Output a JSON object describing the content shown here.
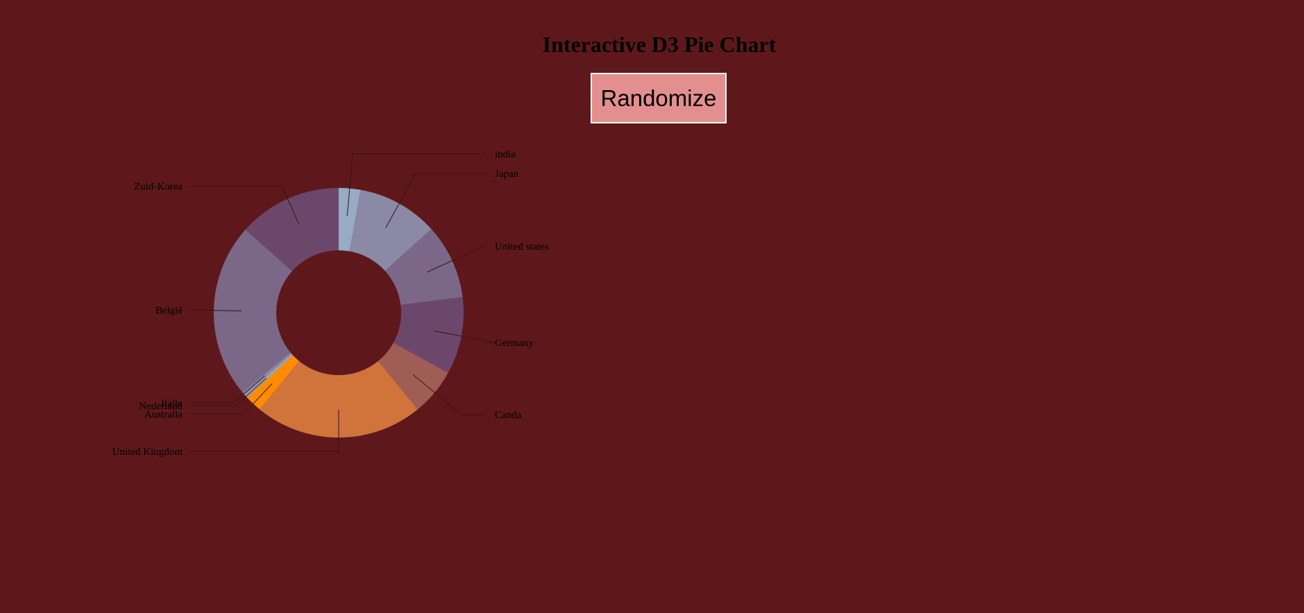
{
  "page": {
    "title": "Interactive D3 Pie Chart",
    "button_label": "Randomize"
  },
  "colors": {
    "background": "#5e181b",
    "button_bg": "#e38f8f",
    "button_border": "#ffffff",
    "leader_line": "#3a1316"
  },
  "chart_data": {
    "type": "pie",
    "variant": "donut",
    "title": "",
    "start_angle_deg": 0,
    "direction": "clockwise",
    "slices": [
      {
        "label": "india",
        "value": 2.8,
        "color": "#98abc5",
        "label_side": "right"
      },
      {
        "label": "Japan",
        "value": 10.5,
        "color": "#8a89a6",
        "label_side": "right"
      },
      {
        "label": "United states",
        "value": 9.7,
        "color": "#7b6888",
        "label_side": "right"
      },
      {
        "label": "Germany",
        "value": 10.0,
        "color": "#6b486b",
        "label_side": "right"
      },
      {
        "label": "Canda",
        "value": 6.1,
        "color": "#a05d56",
        "label_side": "right"
      },
      {
        "label": "United Kingdom",
        "value": 21.8,
        "color": "#d0743c",
        "label_side": "left"
      },
      {
        "label": "Australia",
        "value": 2.2,
        "color": "#ff8c00",
        "label_side": "left"
      },
      {
        "label": "Nederland",
        "value": 0.4,
        "color": "#98abc5",
        "label_side": "left"
      },
      {
        "label": "Italie",
        "value": 0.5,
        "color": "#8a89a6",
        "label_side": "left"
      },
      {
        "label": "België",
        "value": 22.6,
        "color": "#7b6888",
        "label_side": "left"
      },
      {
        "label": "Zuid-Korea",
        "value": 13.4,
        "color": "#6b486b",
        "label_side": "left"
      }
    ]
  }
}
